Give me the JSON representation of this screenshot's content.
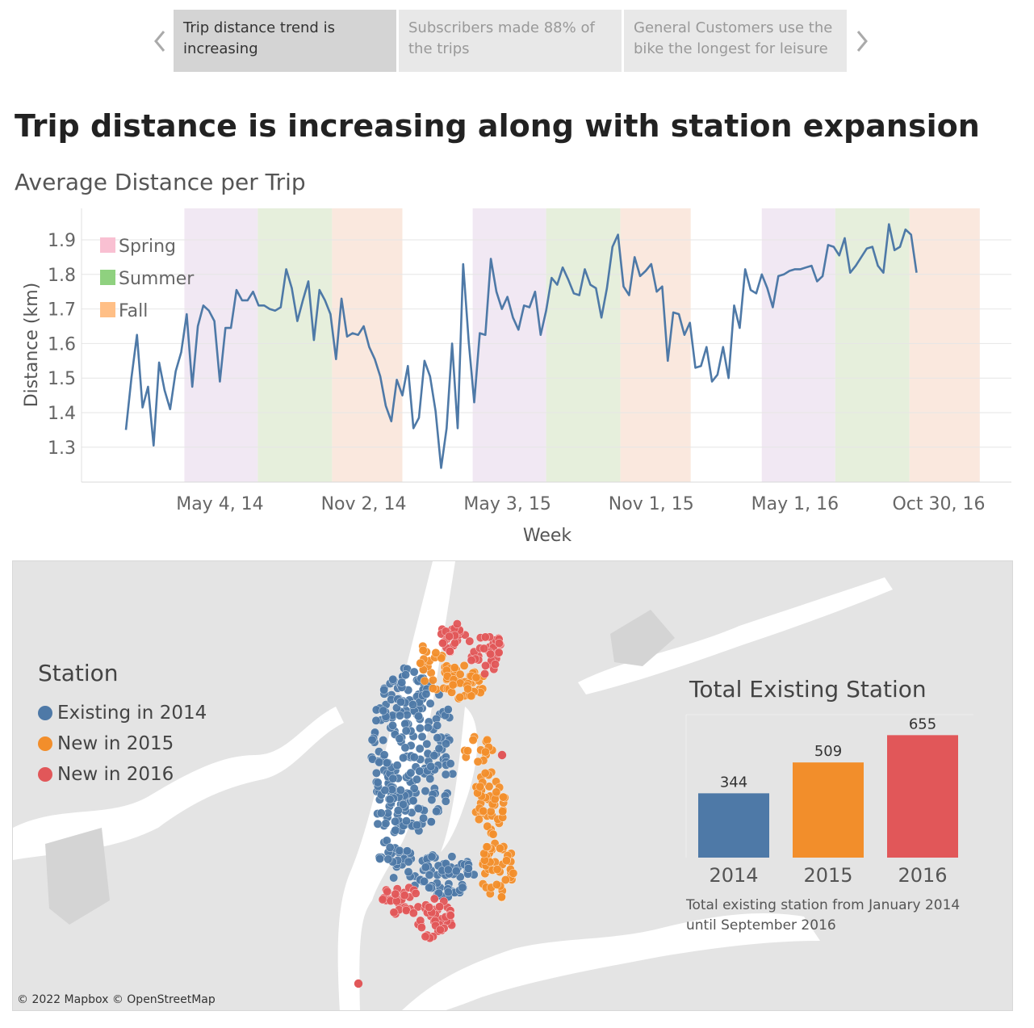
{
  "story_points": [
    {
      "label": "Trip distance trend is increasing",
      "selected": true
    },
    {
      "label": "Subscribers made 88% of the trips",
      "selected": false
    },
    {
      "label": "General Customers use the bike the longest for leisure",
      "selected": false
    }
  ],
  "page_title": "Trip distance is increasing along with station expansion",
  "colors": {
    "line": "#4e79a7",
    "spring_band": "#f1e8f3",
    "summer_band": "#e6efdc",
    "fall_band": "#fae8de",
    "existing": "#4e79a7",
    "new_2015": "#f28e2b",
    "new_2016": "#e15759"
  },
  "chart_data": [
    {
      "type": "line",
      "title": "Average Distance per Trip",
      "xlabel": "Week",
      "ylabel": "Distance (km)",
      "ylim": [
        1.2,
        1.95
      ],
      "yticks": [
        "1.3",
        "1.4",
        "1.5",
        "1.6",
        "1.7",
        "1.8",
        "1.9"
      ],
      "x_start": "2014-01-05",
      "x_step_days": 7,
      "xtick_labels": [
        {
          "date": "2014-05-04",
          "label": "May 4, 14"
        },
        {
          "date": "2014-11-02",
          "label": "Nov 2, 14"
        },
        {
          "date": "2015-05-03",
          "label": "May 3, 15"
        },
        {
          "date": "2015-11-01",
          "label": "Nov 1, 15"
        },
        {
          "date": "2016-05-01",
          "label": "May 1, 16"
        },
        {
          "date": "2016-10-30",
          "label": "Oct 30, 16"
        }
      ],
      "legend": [
        "Spring",
        "Summer",
        "Fall"
      ],
      "legend_placement": "top-left",
      "grid": true,
      "season_bands": [
        {
          "season": "Spring",
          "start": "2014-03-20",
          "end": "2014-06-20"
        },
        {
          "season": "Summer",
          "start": "2014-06-21",
          "end": "2014-09-22"
        },
        {
          "season": "Fall",
          "start": "2014-09-23",
          "end": "2014-12-20"
        },
        {
          "season": "Spring",
          "start": "2015-03-20",
          "end": "2015-06-20"
        },
        {
          "season": "Summer",
          "start": "2015-06-21",
          "end": "2015-09-22"
        },
        {
          "season": "Fall",
          "start": "2015-09-23",
          "end": "2015-12-20"
        },
        {
          "season": "Spring",
          "start": "2016-03-20",
          "end": "2016-06-20"
        },
        {
          "season": "Summer",
          "start": "2016-06-21",
          "end": "2016-09-22"
        },
        {
          "season": "Fall",
          "start": "2016-09-23",
          "end": "2016-12-20"
        }
      ],
      "series": [
        {
          "values": [
            1.35,
            1.5,
            1.625,
            1.415,
            1.475,
            1.305,
            1.545,
            1.465,
            1.41,
            1.52,
            1.575,
            1.685,
            1.475,
            1.65,
            1.71,
            1.695,
            1.665,
            1.49,
            1.645,
            1.645,
            1.755,
            1.725,
            1.725,
            1.75,
            1.71,
            1.71,
            1.7,
            1.695,
            1.705,
            1.815,
            1.76,
            1.665,
            1.725,
            1.78,
            1.61,
            1.755,
            1.725,
            1.685,
            1.555,
            1.73,
            1.62,
            1.63,
            1.625,
            1.65,
            1.59,
            1.555,
            1.505,
            1.42,
            1.375,
            1.495,
            1.45,
            1.535,
            1.355,
            1.385,
            1.55,
            1.505,
            1.405,
            1.24,
            1.355,
            1.6,
            1.355,
            1.83,
            1.605,
            1.43,
            1.63,
            1.625,
            1.845,
            1.75,
            1.7,
            1.735,
            1.675,
            1.64,
            1.71,
            1.705,
            1.75,
            1.625,
            1.695,
            1.79,
            1.77,
            1.82,
            1.785,
            1.745,
            1.74,
            1.815,
            1.77,
            1.76,
            1.675,
            1.76,
            1.88,
            1.915,
            1.765,
            1.74,
            1.85,
            1.795,
            1.81,
            1.83,
            1.75,
            1.765,
            1.55,
            1.69,
            1.685,
            1.625,
            1.66,
            1.53,
            1.535,
            1.59,
            1.49,
            1.51,
            1.59,
            1.5,
            1.71,
            1.645,
            1.815,
            1.755,
            1.745,
            1.8,
            1.76,
            1.705,
            1.795,
            1.8,
            1.81,
            1.815,
            1.815,
            1.82,
            1.825,
            1.78,
            1.795,
            1.885,
            1.88,
            1.855,
            1.905,
            1.805,
            1.825,
            1.85,
            1.875,
            1.88,
            1.825,
            1.805,
            1.945,
            1.87,
            1.88,
            1.93,
            1.915,
            1.805
          ]
        }
      ]
    },
    {
      "type": "bar",
      "title": "Total Existing Station",
      "categories": [
        "2014",
        "2015",
        "2016"
      ],
      "values": [
        344,
        509,
        655
      ],
      "ylim": [
        0,
        700
      ],
      "note": "Total existing station from January 2014 until September 2016"
    }
  ],
  "map": {
    "legend_title": "Station",
    "legend_items": [
      {
        "label": "Existing in 2014",
        "color": "#4e79a7"
      },
      {
        "label": "New in 2015",
        "color": "#f28e2b"
      },
      {
        "label": "New in 2016",
        "color": "#e15759"
      }
    ],
    "copyright": "© 2022 Mapbox © OpenStreetMap"
  },
  "icons": {
    "prev": "chevron-left-icon",
    "next": "chevron-right-icon"
  }
}
